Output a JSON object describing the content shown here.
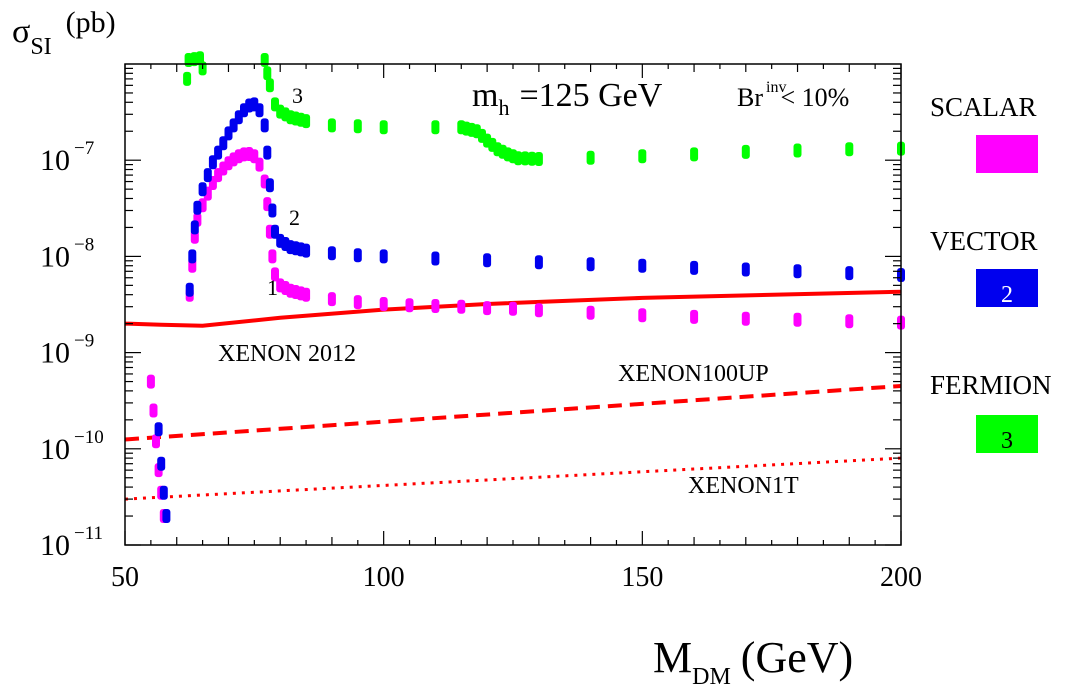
{
  "chart_data": {
    "type": "scatter",
    "title": "",
    "ylabel": "σ_SI (pb)",
    "ylabel_symbol": "σ",
    "ylabel_sub": "SI",
    "ylabel_unit": "(pb)",
    "xlabel": "M_DM (GeV)",
    "xlabel_main": "M",
    "xlabel_sub": "DM",
    "xlabel_unit": "(GeV)",
    "xlim": [
      50,
      200
    ],
    "ylim": [
      1e-11,
      1e-06
    ],
    "yscale": "log",
    "x_ticks": [
      {
        "value": 50,
        "label": "50"
      },
      {
        "value": 100,
        "label": "100"
      },
      {
        "value": 150,
        "label": "150"
      },
      {
        "value": 200,
        "label": "200"
      }
    ],
    "y_ticks": [
      {
        "value": 1e-11,
        "base": "10",
        "exp": "−11"
      },
      {
        "value": 1e-10,
        "base": "10",
        "exp": "−10"
      },
      {
        "value": 1e-09,
        "base": "10",
        "exp": "−9"
      },
      {
        "value": 1e-08,
        "base": "10",
        "exp": "−8"
      },
      {
        "value": 1e-07,
        "base": "10",
        "exp": "−7"
      }
    ],
    "annotation": {
      "mh_sym": "m",
      "mh_sub": "h",
      "mh_val": "=125 GeV",
      "br_sym": "Br",
      "br_sup": "inv",
      "br_val": "< 10%"
    },
    "series": [
      {
        "name": "SCALAR",
        "number": "1",
        "color": "#ff00ff",
        "points": [
          [
            55,
            5e-10
          ],
          [
            55.5,
            2.5e-10
          ],
          [
            56,
            1.2e-10
          ],
          [
            56.5,
            6e-11
          ],
          [
            57,
            3.5e-11
          ],
          [
            57.5,
            2e-11
          ],
          [
            62.5,
            4e-09
          ],
          [
            63,
            8e-09
          ],
          [
            63.5,
            1.6e-08
          ],
          [
            64,
            2.4e-08
          ],
          [
            65,
            3.4e-08
          ],
          [
            66,
            4.5e-08
          ],
          [
            67,
            5.8e-08
          ],
          [
            68,
            7e-08
          ],
          [
            69,
            8.2e-08
          ],
          [
            70,
            9.3e-08
          ],
          [
            71,
            1.02e-07
          ],
          [
            72,
            1.1e-07
          ],
          [
            73,
            1.15e-07
          ],
          [
            74,
            1.16e-07
          ],
          [
            75,
            1.1e-07
          ],
          [
            76,
            9e-08
          ],
          [
            77,
            6e-08
          ],
          [
            77.5,
            3.5e-08
          ],
          [
            78,
            1.8e-08
          ],
          [
            78.5,
            1e-08
          ],
          [
            79,
            6.5e-09
          ],
          [
            80,
            5e-09
          ],
          [
            82,
            4.4e-09
          ],
          [
            85,
            4e-09
          ],
          [
            90,
            3.6e-09
          ],
          [
            95,
            3.35e-09
          ],
          [
            100,
            3.2e-09
          ],
          [
            105,
            3.1e-09
          ],
          [
            110,
            3.05e-09
          ],
          [
            115,
            3e-09
          ],
          [
            120,
            2.9e-09
          ],
          [
            125,
            2.85e-09
          ],
          [
            130,
            2.75e-09
          ],
          [
            140,
            2.6e-09
          ],
          [
            150,
            2.45e-09
          ],
          [
            160,
            2.35e-09
          ],
          [
            170,
            2.25e-09
          ],
          [
            180,
            2.2e-09
          ],
          [
            190,
            2.12e-09
          ],
          [
            200,
            2.05e-09
          ]
        ]
      },
      {
        "name": "VECTOR",
        "number": "2",
        "color": "#0000ee",
        "points": [
          [
            56.5,
            1.6e-10
          ],
          [
            57,
            7e-11
          ],
          [
            57.5,
            3.5e-11
          ],
          [
            58,
            2e-11
          ],
          [
            62.5,
            4.5e-09
          ],
          [
            63,
            1e-08
          ],
          [
            63.5,
            2e-08
          ],
          [
            64,
            3.2e-08
          ],
          [
            65,
            5e-08
          ],
          [
            66,
            7e-08
          ],
          [
            67,
            9.5e-08
          ],
          [
            68,
            1.2e-07
          ],
          [
            69,
            1.5e-07
          ],
          [
            70,
            1.9e-07
          ],
          [
            71,
            2.3e-07
          ],
          [
            72,
            2.8e-07
          ],
          [
            73,
            3.3e-07
          ],
          [
            74,
            3.7e-07
          ],
          [
            75,
            3.8e-07
          ],
          [
            76,
            3.3e-07
          ],
          [
            77,
            2.3e-07
          ],
          [
            77.5,
            1.2e-07
          ],
          [
            78,
            5.5e-08
          ],
          [
            78.5,
            3e-08
          ],
          [
            79,
            1.8e-08
          ],
          [
            80,
            1.45e-08
          ],
          [
            82,
            1.25e-08
          ],
          [
            85,
            1.15e-08
          ],
          [
            90,
            1.08e-08
          ],
          [
            95,
            1.03e-08
          ],
          [
            100,
            1e-08
          ],
          [
            110,
            9.5e-09
          ],
          [
            120,
            9.1e-09
          ],
          [
            130,
            8.7e-09
          ],
          [
            140,
            8.3e-09
          ],
          [
            150,
            8e-09
          ],
          [
            160,
            7.6e-09
          ],
          [
            170,
            7.3e-09
          ],
          [
            180,
            7e-09
          ],
          [
            190,
            6.7e-09
          ],
          [
            200,
            6.4e-09
          ]
        ]
      },
      {
        "name": "FERMION",
        "number": "3",
        "color": "#00ff00",
        "points": [
          [
            62,
            7e-07
          ],
          [
            62.3,
            1.1e-06
          ],
          [
            64.5,
            1.15e-06
          ],
          [
            65,
            9e-07
          ],
          [
            77,
            1.1e-06
          ],
          [
            77.5,
            8e-07
          ],
          [
            78,
            6e-07
          ],
          [
            79,
            3.8e-07
          ],
          [
            80,
            3.2e-07
          ],
          [
            82,
            2.8e-07
          ],
          [
            85,
            2.55e-07
          ],
          [
            90,
            2.3e-07
          ],
          [
            95,
            2.25e-07
          ],
          [
            100,
            2.2e-07
          ],
          [
            110,
            2.2e-07
          ],
          [
            115,
            2.2e-07
          ],
          [
            118,
            2e-07
          ],
          [
            120,
            1.6e-07
          ],
          [
            122,
            1.3e-07
          ],
          [
            124,
            1.15e-07
          ],
          [
            126,
            1.05e-07
          ],
          [
            130,
            1.03e-07
          ],
          [
            140,
            1.06e-07
          ],
          [
            150,
            1.1e-07
          ],
          [
            160,
            1.15e-07
          ],
          [
            170,
            1.22e-07
          ],
          [
            180,
            1.26e-07
          ],
          [
            190,
            1.3e-07
          ],
          [
            200,
            1.32e-07
          ]
        ]
      }
    ],
    "limits": [
      {
        "name": "XENON 2012",
        "style": "solid",
        "color": "#ff0000",
        "points": [
          [
            50,
            2e-09
          ],
          [
            57,
            1.95e-09
          ],
          [
            65,
            1.9e-09
          ],
          [
            80,
            2.3e-09
          ],
          [
            100,
            2.8e-09
          ],
          [
            120,
            3.2e-09
          ],
          [
            150,
            3.7e-09
          ],
          [
            200,
            4.3e-09
          ]
        ]
      },
      {
        "name": "XENON100UP",
        "style": "dashed",
        "color": "#ff0000",
        "points": [
          [
            50,
            1.25e-10
          ],
          [
            200,
            4.5e-10
          ]
        ]
      },
      {
        "name": "XENON1T",
        "style": "dotted",
        "color": "#ff0000",
        "points": [
          [
            50,
            3e-11
          ],
          [
            200,
            8e-11
          ]
        ]
      }
    ],
    "legend_placement": "right"
  }
}
